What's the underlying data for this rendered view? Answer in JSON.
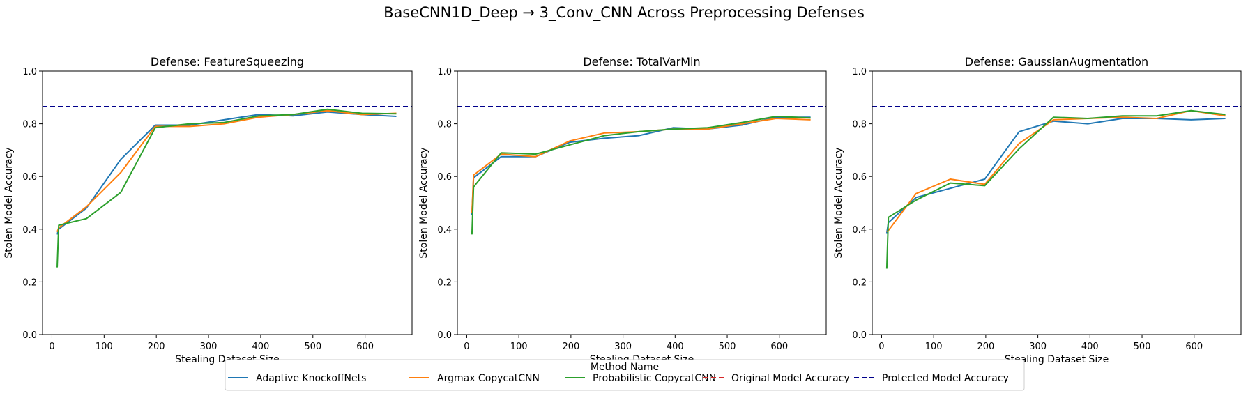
{
  "suptitle": "BaseCNN1D_Deep → 3_Conv_CNN Across Preprocessing Defenses",
  "colors": {
    "Adaptive KnockoffNets": "#1f77b4",
    "Argmax CopycatCNN": "#ff7f0e",
    "Probabilistic CopycatCNN": "#2ca02c",
    "Original Model Accuracy": "#d62728",
    "Protected Model Accuracy": "#00008b"
  },
  "legend": {
    "title": "Method Name",
    "entries": [
      {
        "label": "Adaptive KnockoffNets",
        "style": "solid"
      },
      {
        "label": "Argmax CopycatCNN",
        "style": "solid"
      },
      {
        "label": "Probabilistic CopycatCNN",
        "style": "solid"
      },
      {
        "label": "Original Model Accuracy",
        "style": "dashed"
      },
      {
        "label": "Protected Model Accuracy",
        "style": "dashed"
      }
    ]
  },
  "chart_data": [
    {
      "type": "line",
      "title": "Defense: FeatureSqueezing",
      "xlabel": "Stealing Dataset Size",
      "ylabel": "Stolen Model Accuracy",
      "xlim": [
        -18,
        690
      ],
      "ylim": [
        0,
        1.0
      ],
      "xticks": [
        0,
        100,
        200,
        300,
        400,
        500,
        600
      ],
      "yticks": [
        0.0,
        0.2,
        0.4,
        0.6,
        0.8,
        1.0
      ],
      "hlines": [
        {
          "name": "Protected Model Accuracy",
          "y": 0.865,
          "style": "dashed"
        }
      ],
      "series": [
        {
          "name": "Adaptive KnockoffNets",
          "x": [
            10,
            13,
            66,
            132,
            198,
            264,
            330,
            396,
            462,
            528,
            594,
            660
          ],
          "y": [
            0.38,
            0.4,
            0.48,
            0.665,
            0.795,
            0.795,
            0.815,
            0.835,
            0.83,
            0.845,
            0.835,
            0.828
          ]
        },
        {
          "name": "Argmax CopycatCNN",
          "x": [
            10,
            13,
            66,
            132,
            198,
            264,
            330,
            396,
            462,
            528,
            594,
            660
          ],
          "y": [
            0.39,
            0.405,
            0.485,
            0.615,
            0.79,
            0.79,
            0.8,
            0.825,
            0.835,
            0.85,
            0.835,
            0.84
          ]
        },
        {
          "name": "Probabilistic CopycatCNN",
          "x": [
            10,
            13,
            66,
            132,
            198,
            264,
            330,
            396,
            462,
            528,
            594,
            660
          ],
          "y": [
            0.255,
            0.415,
            0.44,
            0.54,
            0.785,
            0.8,
            0.805,
            0.83,
            0.835,
            0.855,
            0.84,
            0.838
          ]
        }
      ]
    },
    {
      "type": "line",
      "title": "Defense: TotalVarMin",
      "xlabel": "Stealing Dataset Size",
      "ylabel": "Stolen Model Accuracy",
      "xlim": [
        -18,
        690
      ],
      "ylim": [
        0,
        1.0
      ],
      "xticks": [
        0,
        100,
        200,
        300,
        400,
        500,
        600
      ],
      "yticks": [
        0.0,
        0.2,
        0.4,
        0.6,
        0.8,
        1.0
      ],
      "hlines": [
        {
          "name": "Protected Model Accuracy",
          "y": 0.865,
          "style": "dashed"
        }
      ],
      "series": [
        {
          "name": "Adaptive KnockoffNets",
          "x": [
            10,
            13,
            66,
            132,
            198,
            264,
            330,
            396,
            462,
            528,
            594,
            660
          ],
          "y": [
            0.455,
            0.595,
            0.675,
            0.675,
            0.73,
            0.745,
            0.755,
            0.785,
            0.78,
            0.795,
            0.825,
            0.825
          ]
        },
        {
          "name": "Argmax CopycatCNN",
          "x": [
            10,
            13,
            66,
            132,
            198,
            264,
            330,
            396,
            462,
            528,
            594,
            660
          ],
          "y": [
            0.46,
            0.605,
            0.685,
            0.675,
            0.735,
            0.765,
            0.77,
            0.78,
            0.78,
            0.8,
            0.82,
            0.815
          ]
        },
        {
          "name": "Probabilistic CopycatCNN",
          "x": [
            10,
            13,
            66,
            132,
            198,
            264,
            330,
            396,
            462,
            528,
            594,
            660
          ],
          "y": [
            0.38,
            0.56,
            0.69,
            0.685,
            0.72,
            0.755,
            0.77,
            0.78,
            0.785,
            0.805,
            0.828,
            0.822
          ]
        }
      ]
    },
    {
      "type": "line",
      "title": "Defense: GaussianAugmentation",
      "xlabel": "Stealing Dataset Size",
      "ylabel": "Stolen Model Accuracy",
      "xlim": [
        -18,
        690
      ],
      "ylim": [
        0,
        1.0
      ],
      "xticks": [
        0,
        100,
        200,
        300,
        400,
        500,
        600
      ],
      "yticks": [
        0.0,
        0.2,
        0.4,
        0.6,
        0.8,
        1.0
      ],
      "hlines": [
        {
          "name": "Protected Model Accuracy",
          "y": 0.865,
          "style": "dashed"
        }
      ],
      "series": [
        {
          "name": "Adaptive KnockoffNets",
          "x": [
            10,
            13,
            66,
            132,
            198,
            264,
            330,
            396,
            462,
            528,
            594,
            660
          ],
          "y": [
            0.385,
            0.425,
            0.52,
            0.555,
            0.59,
            0.77,
            0.81,
            0.8,
            0.82,
            0.82,
            0.815,
            0.82
          ]
        },
        {
          "name": "Argmax CopycatCNN",
          "x": [
            10,
            13,
            66,
            132,
            198,
            264,
            330,
            396,
            462,
            528,
            594,
            660
          ],
          "y": [
            0.39,
            0.395,
            0.535,
            0.59,
            0.57,
            0.725,
            0.815,
            0.82,
            0.825,
            0.82,
            0.85,
            0.83
          ]
        },
        {
          "name": "Probabilistic CopycatCNN",
          "x": [
            10,
            13,
            66,
            132,
            198,
            264,
            330,
            396,
            462,
            528,
            594,
            660
          ],
          "y": [
            0.25,
            0.445,
            0.51,
            0.575,
            0.565,
            0.705,
            0.825,
            0.82,
            0.83,
            0.83,
            0.85,
            0.835
          ]
        }
      ]
    }
  ]
}
